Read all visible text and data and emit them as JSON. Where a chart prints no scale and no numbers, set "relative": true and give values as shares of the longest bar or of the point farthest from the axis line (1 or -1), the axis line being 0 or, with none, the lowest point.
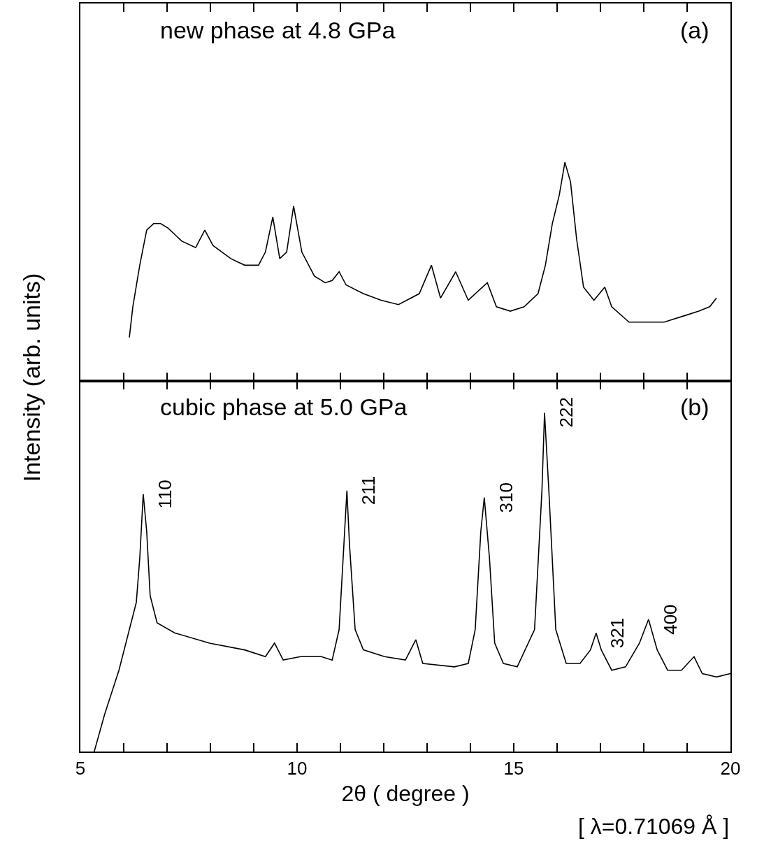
{
  "chart_data": [
    {
      "type": "line",
      "relative": true,
      "ylabel": "Intensity (arb. units)",
      "xlim": [
        5,
        20
      ],
      "xticks": [
        5,
        {
          "value": 6,
          "label": null
        },
        {
          "value": 7,
          "label": null
        },
        {
          "value": 8,
          "label": null
        },
        {
          "value": 9,
          "label": null
        },
        10,
        {
          "value": 11,
          "label": null
        },
        {
          "value": 12,
          "label": null
        },
        {
          "value": 13,
          "label": null
        },
        {
          "value": 14,
          "label": null
        },
        15,
        {
          "value": 16,
          "label": null
        },
        {
          "value": 17,
          "label": null
        },
        {
          "value": 18,
          "label": null
        },
        {
          "value": 19,
          "label": null
        },
        20
      ],
      "tick_labels": false,
      "grid": false,
      "line_style": "solid",
      "annotations": [
        "new phase at 4.8 GPa",
        "(a)"
      ],
      "series": [
        {
          "color": "#000000",
          "x": [
            6.13,
            6.21,
            6.37,
            6.53,
            6.69,
            6.85,
            7.02,
            7.34,
            7.66,
            7.87,
            8.06,
            8.47,
            8.79,
            9.11,
            9.27,
            9.44,
            9.6,
            9.76,
            9.92,
            10.11,
            10.4,
            10.65,
            10.81,
            10.97,
            11.13,
            11.53,
            11.94,
            12.34,
            12.82,
            13.1,
            13.31,
            13.66,
            13.95,
            14.39,
            14.6,
            14.92,
            15.24,
            15.56,
            15.73,
            15.89,
            16.05,
            16.18,
            16.31,
            16.45,
            16.61,
            16.85,
            17.1,
            17.26,
            17.66,
            18.47,
            18.95,
            19.27,
            19.52,
            19.68
          ],
          "values": [
            0.2,
            0.34,
            0.53,
            0.69,
            0.72,
            0.72,
            0.7,
            0.64,
            0.61,
            0.69,
            0.62,
            0.56,
            0.53,
            0.53,
            0.59,
            0.75,
            0.56,
            0.59,
            0.8,
            0.59,
            0.48,
            0.45,
            0.46,
            0.5,
            0.44,
            0.4,
            0.37,
            0.35,
            0.4,
            0.53,
            0.38,
            0.5,
            0.37,
            0.45,
            0.34,
            0.32,
            0.34,
            0.4,
            0.53,
            0.72,
            0.85,
            1,
            0.91,
            0.65,
            0.43,
            0.37,
            0.43,
            0.34,
            0.27,
            0.27,
            0.3,
            0.32,
            0.34,
            0.38
          ]
        }
      ]
    },
    {
      "type": "line",
      "relative": true,
      "xlabel": "2θ ( degree )",
      "xlim": [
        5,
        20
      ],
      "xticks": [
        5,
        {
          "value": 6,
          "label": null
        },
        {
          "value": 7,
          "label": null
        },
        {
          "value": 8,
          "label": null
        },
        {
          "value": 9,
          "label": null
        },
        10,
        {
          "value": 11,
          "label": null
        },
        {
          "value": 12,
          "label": null
        },
        {
          "value": 13,
          "label": null
        },
        {
          "value": 14,
          "label": null
        },
        15,
        {
          "value": 16,
          "label": null
        },
        {
          "value": 17,
          "label": null
        },
        {
          "value": 18,
          "label": null
        },
        {
          "value": 19,
          "label": null
        },
        20
      ],
      "tick_labels": "x",
      "grid": false,
      "line_style": "solid",
      "annotations": [
        "cubic phase at 5.0 GPa",
        "(b)",
        "[ λ=0.71069 Å ]",
        {
          "text": "110",
          "x": 6.45,
          "y": 0.76
        },
        {
          "text": "211",
          "x": 11.15,
          "y": 0.77
        },
        {
          "text": "310",
          "x": 14.32,
          "y": 0.75
        },
        {
          "text": "222",
          "x": 15.71,
          "y": 1
        },
        {
          "text": "321",
          "x": 16.9,
          "y": 0.35
        },
        {
          "text": "400",
          "x": 18.11,
          "y": 0.39
        }
      ],
      "series": [
        {
          "color": "#000000",
          "x": [
            5.32,
            5.56,
            5.89,
            6.13,
            6.29,
            6.37,
            6.45,
            6.53,
            6.61,
            6.77,
            7.18,
            7.98,
            8.79,
            9.27,
            9.48,
            9.68,
            10.08,
            10.56,
            10.81,
            10.97,
            11.08,
            11.15,
            11.21,
            11.34,
            11.53,
            12.02,
            12.5,
            12.74,
            12.9,
            13.63,
            13.95,
            14.11,
            14.24,
            14.32,
            14.44,
            14.56,
            14.76,
            15.08,
            15.48,
            15.65,
            15.71,
            15.81,
            15.97,
            16.21,
            16.53,
            16.77,
            16.9,
            17.02,
            17.26,
            17.58,
            17.9,
            18.11,
            18.31,
            18.55,
            18.87,
            19.16,
            19.35,
            19.68,
            20
          ],
          "values": [
            0,
            0.11,
            0.24,
            0.36,
            0.44,
            0.57,
            0.76,
            0.65,
            0.46,
            0.38,
            0.35,
            0.32,
            0.3,
            0.28,
            0.32,
            0.27,
            0.28,
            0.28,
            0.27,
            0.36,
            0.61,
            0.77,
            0.61,
            0.36,
            0.3,
            0.28,
            0.27,
            0.33,
            0.26,
            0.25,
            0.26,
            0.36,
            0.65,
            0.75,
            0.57,
            0.32,
            0.26,
            0.25,
            0.36,
            0.77,
            1,
            0.77,
            0.36,
            0.26,
            0.26,
            0.3,
            0.35,
            0.3,
            0.24,
            0.25,
            0.32,
            0.39,
            0.3,
            0.24,
            0.24,
            0.28,
            0.23,
            0.22,
            0.23
          ]
        }
      ]
    }
  ]
}
